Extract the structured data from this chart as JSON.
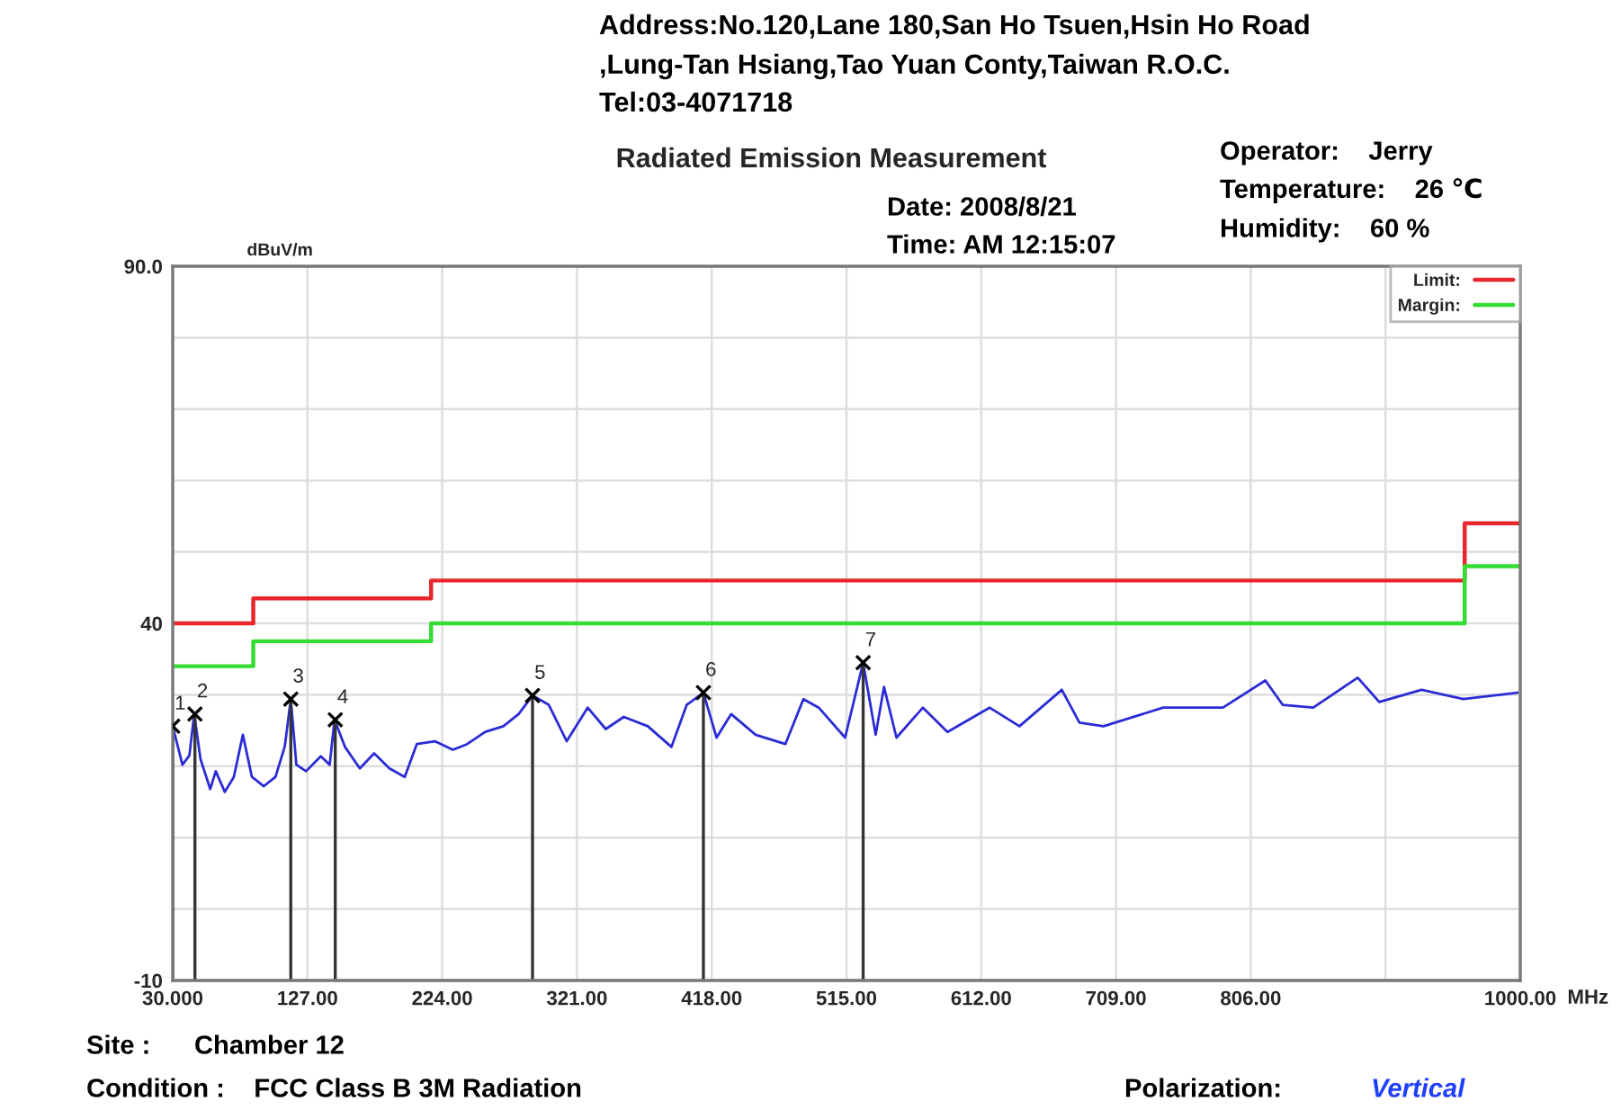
{
  "chart_data": {
    "type": "line",
    "title": "Radiated Emission Measurement",
    "ylabel": "dBuV/m",
    "xlabel": "MHz",
    "annotations": [
      "Address:No.120,Lane 180,San Ho Tsuen,Hsin Ho Road",
      ",Lung-Tan Hsiang,Tao Yuan Conty,Taiwan R.O.C.",
      "Tel:03-4071718",
      "Date: 2008/8/21",
      "Time: AM 12:15:07",
      "Operator:    Jerry",
      "Temperature:    26 ℃",
      "Humidity:    60 %",
      "Site :      Chamber 12",
      "Condition :    FCC Class B 3M Radiation",
      "Polarization:",
      "Vertical",
      {
        "text": "1",
        "x": 30,
        "y": 25.6
      },
      {
        "text": "2",
        "x": 46,
        "y": 27.3
      },
      {
        "text": "3",
        "x": 115,
        "y": 29.4
      },
      {
        "text": "4",
        "x": 147,
        "y": 26.5
      },
      {
        "text": "5",
        "x": 289,
        "y": 29.9
      },
      {
        "text": "6",
        "x": 412,
        "y": 30.3
      },
      {
        "text": "7",
        "x": 527,
        "y": 34.5
      }
    ],
    "series": [
      {
        "name": "Limit:",
        "type": "step",
        "color": "#e8262b",
        "x": [
          30,
          88,
          216,
          960,
          1000
        ],
        "values": [
          40,
          43.5,
          46,
          54,
          54
        ]
      },
      {
        "name": "Margin:",
        "type": "step",
        "color": "#33dd33",
        "x": [
          30,
          88,
          216,
          960,
          1000
        ],
        "values": [
          34,
          37.5,
          40,
          48,
          48
        ]
      },
      {
        "color": "#2b2bd6",
        "x": [
          30,
          37,
          42,
          45.5,
          50,
          57,
          61,
          67.5,
          74,
          80.5,
          87,
          95.6,
          104,
          110.7,
          115,
          119,
          126,
          136.6,
          143,
          146.5,
          154,
          164.7,
          175,
          186,
          197,
          205.7,
          218.7,
          231.6,
          242,
          255,
          268,
          279,
          289,
          300.7,
          313.6,
          328.7,
          341.7,
          354.7,
          372,
          389,
          400,
          412,
          421.5,
          432,
          449.6,
          471,
          484,
          495,
          514,
          527,
          536,
          542,
          551,
          570,
          587.7,
          618,
          639.5,
          670,
          682.7,
          700,
          743,
          786,
          816.5,
          829,
          851,
          883,
          898.5,
          929,
          959,
          998
        ],
        "values": [
          25.6,
          20.2,
          21.5,
          27.3,
          21,
          16.8,
          19.3,
          16.4,
          18.5,
          24.4,
          18.5,
          17.2,
          18.5,
          22.8,
          29.4,
          20.2,
          19.3,
          21.4,
          20.2,
          26.5,
          22.7,
          19.7,
          21.8,
          19.7,
          18.5,
          23.1,
          23.5,
          22.3,
          23.1,
          24.8,
          25.6,
          27.3,
          29.9,
          28.6,
          23.5,
          28.2,
          25.2,
          26.9,
          25.6,
          22.7,
          28.6,
          30.3,
          24,
          27.3,
          24.4,
          23.1,
          29.4,
          28.2,
          24,
          34.5,
          24.4,
          31.1,
          24,
          28.2,
          24.8,
          28.2,
          25.6,
          30.7,
          26.1,
          25.6,
          28.2,
          28.2,
          32,
          28.6,
          28.2,
          32.4,
          29,
          30.7,
          29.4,
          30.3
        ]
      },
      {
        "type": "lollipop",
        "color": "#000000",
        "marker": "cross",
        "x": [
          30,
          46,
          115,
          147,
          289,
          412,
          527
        ],
        "values": [
          25.6,
          27.3,
          29.4,
          26.5,
          29.9,
          30.3,
          34.5
        ]
      }
    ],
    "xlim": [
      30,
      1000
    ],
    "ylim": [
      -10,
      90
    ],
    "xticks": [
      {
        "value": 30,
        "label": "30.000"
      },
      {
        "value": 127,
        "label": "127.00"
      },
      {
        "value": 224,
        "label": "224.00"
      },
      {
        "value": 321,
        "label": "321.00"
      },
      {
        "value": 418,
        "label": "418.00"
      },
      {
        "value": 515,
        "label": "515.00"
      },
      {
        "value": 612,
        "label": "612.00"
      },
      {
        "value": 709,
        "label": "709.00"
      },
      {
        "value": 806,
        "label": "806.00"
      },
      {
        "value": 903,
        "label": null
      },
      {
        "value": 1000,
        "label": "1000.00"
      }
    ],
    "yticks": [
      {
        "value": -10,
        "label": "-10"
      },
      {
        "value": 0,
        "label": null
      },
      {
        "value": 10,
        "label": null
      },
      {
        "value": 20,
        "label": null
      },
      {
        "value": 30,
        "label": null
      },
      {
        "value": 40,
        "label": "40"
      },
      {
        "value": 50,
        "label": null
      },
      {
        "value": 60,
        "label": null
      },
      {
        "value": 70,
        "label": null
      },
      {
        "value": 80,
        "label": null
      },
      {
        "value": 90,
        "label": "90.0"
      }
    ],
    "grid": true,
    "legend": "top right"
  }
}
